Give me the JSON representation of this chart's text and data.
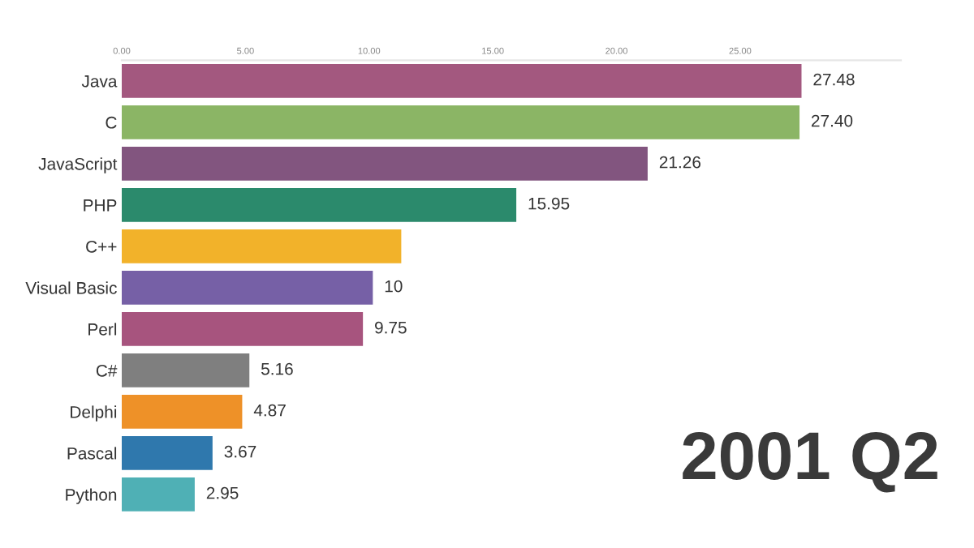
{
  "chart_data": {
    "type": "bar",
    "orientation": "horizontal",
    "categories": [
      "Java",
      "C",
      "JavaScript",
      "PHP",
      "C++",
      "Visual Basic",
      "Perl",
      "C#",
      "Delphi",
      "Pascal",
      "Python"
    ],
    "values": [
      27.48,
      27.4,
      21.26,
      15.95,
      11.3,
      10.15,
      9.75,
      5.16,
      4.87,
      3.67,
      2.95
    ],
    "value_labels": [
      "27.48",
      "27.40",
      "21.26",
      "15.95",
      null,
      "10",
      "9.75",
      "5.16",
      "4.87",
      "3.67",
      "2.95"
    ],
    "colors": [
      "#a3587f",
      "#8bb565",
      "#82557f",
      "#2b8a6c",
      "#f2b22a",
      "#7660a6",
      "#a7547e",
      "#7f7f7f",
      "#ee9128",
      "#2f78ad",
      "#4fb0b5"
    ],
    "xlim": [
      0,
      31.5
    ],
    "xticks": [
      {
        "value": 0,
        "label": "0.00"
      },
      {
        "value": 5,
        "label": "5.00"
      },
      {
        "value": 10,
        "label": "10.00"
      },
      {
        "value": 15,
        "label": "15.00"
      },
      {
        "value": 20,
        "label": "20.00"
      },
      {
        "value": 25,
        "label": "25.00"
      }
    ],
    "annotations": [
      "2001 Q2"
    ],
    "grid": false
  }
}
